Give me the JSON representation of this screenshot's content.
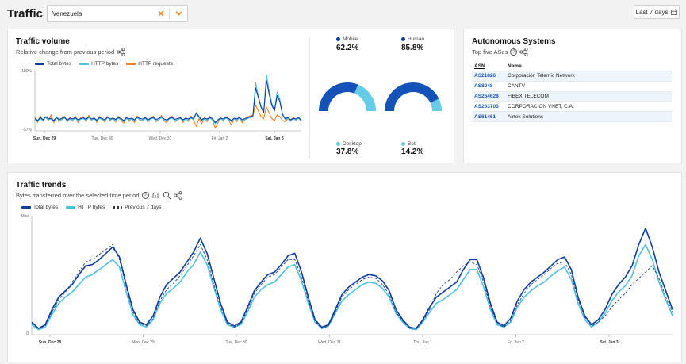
{
  "header": {
    "title": "Traffic in",
    "country": "Venezuela",
    "date_range": "Last 7 days"
  },
  "colors": {
    "total": "#0d3c9e",
    "http": "#4fc1e0",
    "requests": "#f48120",
    "accent": "#f48120"
  },
  "traffic_volume": {
    "title": "Traffic volume",
    "subtitle": "Relative change from previous period",
    "legend": [
      "Total bytes",
      "HTTP bytes",
      "HTTP requests"
    ],
    "y_top": "100%",
    "y_bottom": "-57%",
    "x_ticks": [
      "Sun, Dec 29",
      "Tue, Dec 30",
      "Wed, Dec 31",
      "Fri, Jan 2",
      "Sat, Jan 3"
    ]
  },
  "donuts": [
    {
      "label": "Mobile",
      "value": "62.2%",
      "frac": 0.622
    },
    {
      "label": "Human",
      "value": "85.8%",
      "frac": 0.858
    },
    {
      "label": "Desktop",
      "value": "37.8%"
    },
    {
      "label": "Bot",
      "value": "14.2%"
    }
  ],
  "asn": {
    "title": "Autonomous Systems",
    "subtitle": "Top five ASes",
    "headers": [
      "ASN",
      "Name"
    ],
    "rows": [
      {
        "asn": "AS21826",
        "name": "Corporación Telemic Network"
      },
      {
        "asn": "AS8048",
        "name": "CANTV"
      },
      {
        "asn": "AS264628",
        "name": "FIBEX TELECOM"
      },
      {
        "asn": "AS263703",
        "name": "CORPORACION VNET, C.A."
      },
      {
        "asn": "AS61461",
        "name": "Airtek Solutions"
      }
    ]
  },
  "traffic_trends": {
    "title": "Traffic trends",
    "subtitle": "Bytes transferred over the selected time period",
    "legend": [
      "Total bytes",
      "HTTP bytes",
      "Previous 7 days"
    ],
    "y_top": "Max",
    "y_bottom": "0",
    "x_ticks": [
      "Sun, Dec 28",
      "Mon, Dec 29",
      "Tue, Dec 30",
      "Wed, Dec 31",
      "Thu, Jan 1",
      "Fri, Jan 2",
      "Sat, Jan 3"
    ]
  },
  "chart_data": [
    {
      "type": "line",
      "title": "Traffic volume",
      "ylim": [
        -57,
        100
      ],
      "x_ticks": [
        "Sun, Dec 29",
        "Tue, Dec 30",
        "Wed, Dec 31",
        "Fri, Jan 2",
        "Sat, Jan 3"
      ],
      "series": [
        {
          "name": "Total bytes",
          "values": [
            -25,
            -30,
            -22,
            -28,
            -20,
            -26,
            -24,
            -30,
            -22,
            -27,
            -25,
            -21,
            -29,
            -24,
            -26,
            -22,
            -28,
            -25,
            -23,
            -27,
            -20,
            -26,
            -24,
            -29,
            -22,
            -25,
            -28,
            -21,
            -26,
            -24,
            -27,
            -22,
            -25,
            -30,
            -23,
            -26,
            -24,
            -28,
            -21,
            -25,
            -26,
            -23,
            -28,
            -24,
            -22,
            -27,
            -25,
            -20,
            -26,
            -29,
            -24,
            -22,
            -27,
            -25,
            -23,
            -28,
            -24,
            -26,
            -22,
            -25,
            -10,
            -20,
            -28,
            -24,
            -26,
            -22,
            -25,
            -35,
            -28,
            -24,
            -26,
            -22,
            -25,
            -30,
            -24,
            -26,
            -22,
            -28,
            -25,
            -23,
            -20,
            -18,
            55,
            30,
            5,
            -10,
            75,
            40,
            10,
            -5,
            35,
            20,
            -15,
            -25,
            -22,
            -28,
            -24,
            -26,
            -22,
            -30
          ]
        },
        {
          "name": "HTTP bytes",
          "values": [
            -28,
            -32,
            -25,
            -30,
            -22,
            -29,
            -26,
            -33,
            -24,
            -30,
            -28,
            -23,
            -31,
            -27,
            -29,
            -24,
            -31,
            -27,
            -25,
            -30,
            -22,
            -29,
            -26,
            -32,
            -24,
            -28,
            -30,
            -23,
            -29,
            -26,
            -30,
            -24,
            -28,
            -33,
            -25,
            -29,
            -26,
            -31,
            -23,
            -28,
            -29,
            -25,
            -31,
            -26,
            -24,
            -30,
            -28,
            -22,
            -29,
            -32,
            -26,
            -24,
            -30,
            -28,
            -25,
            -31,
            -26,
            -29,
            -24,
            -28,
            -12,
            -22,
            -31,
            -26,
            -29,
            -24,
            -28,
            -38,
            -31,
            -26,
            -29,
            -24,
            -28,
            -33,
            -26,
            -29,
            -24,
            -31,
            -28,
            -25,
            -22,
            -20,
            70,
            35,
            8,
            -8,
            90,
            50,
            15,
            -2,
            45,
            25,
            -12,
            -28,
            -24,
            -31,
            -26,
            -29,
            -24,
            -32
          ]
        },
        {
          "name": "HTTP requests",
          "values": [
            -22,
            -35,
            -18,
            -32,
            -20,
            -30,
            -15,
            -36,
            -21,
            -33,
            -24,
            -19,
            -34,
            -22,
            -31,
            -18,
            -35,
            -23,
            -20,
            -33,
            -17,
            -30,
            -22,
            -35,
            -19,
            -28,
            -34,
            -20,
            -31,
            -23,
            -34,
            -19,
            -29,
            -37,
            -21,
            -32,
            -24,
            -35,
            -18,
            -30,
            -31,
            -21,
            -34,
            -24,
            -19,
            -33,
            -29,
            -17,
            -31,
            -36,
            -22,
            -19,
            -33,
            -29,
            -21,
            -35,
            -22,
            -32,
            -19,
            -30,
            -45,
            -25,
            -38,
            -22,
            -33,
            -19,
            -29,
            -50,
            -36,
            -22,
            -32,
            -20,
            -30,
            -42,
            -24,
            -33,
            -20,
            -36,
            -28,
            -21,
            -18,
            -15,
            10,
            -5,
            -20,
            -25,
            5,
            -10,
            -25,
            -30,
            -15,
            -20,
            -30,
            -33,
            -25,
            -32,
            -22,
            -30,
            -24,
            -31
          ]
        }
      ]
    },
    {
      "type": "pie",
      "title": "Mobile vs Desktop",
      "categories": [
        "Mobile",
        "Desktop"
      ],
      "values": [
        62.2,
        37.8
      ]
    },
    {
      "type": "pie",
      "title": "Human vs Bot",
      "categories": [
        "Human",
        "Bot"
      ],
      "values": [
        85.8,
        14.2
      ]
    },
    {
      "type": "line",
      "title": "Traffic trends",
      "x_ticks": [
        "Sun, Dec 28",
        "Mon, Dec 29",
        "Tue, Dec 30",
        "Wed, Dec 31",
        "Thu, Jan 1",
        "Fri, Jan 2",
        "Sat, Jan 3"
      ],
      "series": [
        {
          "name": "Total bytes",
          "values": [
            0.1,
            0.05,
            0.08,
            0.2,
            0.3,
            0.35,
            0.4,
            0.48,
            0.55,
            0.56,
            0.6,
            0.65,
            0.7,
            0.62,
            0.4,
            0.2,
            0.1,
            0.08,
            0.15,
            0.3,
            0.4,
            0.45,
            0.5,
            0.58,
            0.66,
            0.77,
            0.65,
            0.45,
            0.25,
            0.1,
            0.07,
            0.1,
            0.22,
            0.35,
            0.42,
            0.48,
            0.5,
            0.56,
            0.63,
            0.65,
            0.5,
            0.3,
            0.12,
            0.06,
            0.08,
            0.2,
            0.32,
            0.38,
            0.42,
            0.46,
            0.48,
            0.47,
            0.43,
            0.35,
            0.2,
            0.12,
            0.06,
            0.05,
            0.12,
            0.22,
            0.3,
            0.34,
            0.38,
            0.42,
            0.52,
            0.6,
            0.6,
            0.45,
            0.25,
            0.1,
            0.07,
            0.13,
            0.27,
            0.36,
            0.42,
            0.46,
            0.5,
            0.55,
            0.6,
            0.62,
            0.52,
            0.3,
            0.15,
            0.08,
            0.12,
            0.2,
            0.32,
            0.4,
            0.46,
            0.55,
            0.72,
            0.85,
            0.7,
            0.5,
            0.35,
            0.2
          ]
        },
        {
          "name": "HTTP bytes",
          "values": [
            0.08,
            0.04,
            0.06,
            0.16,
            0.25,
            0.3,
            0.34,
            0.4,
            0.46,
            0.48,
            0.52,
            0.56,
            0.6,
            0.54,
            0.34,
            0.16,
            0.08,
            0.06,
            0.12,
            0.25,
            0.33,
            0.37,
            0.42,
            0.5,
            0.56,
            0.66,
            0.56,
            0.38,
            0.2,
            0.08,
            0.06,
            0.08,
            0.18,
            0.3,
            0.36,
            0.4,
            0.42,
            0.48,
            0.54,
            0.56,
            0.43,
            0.25,
            0.1,
            0.05,
            0.07,
            0.17,
            0.27,
            0.32,
            0.36,
            0.4,
            0.42,
            0.41,
            0.37,
            0.3,
            0.17,
            0.1,
            0.05,
            0.04,
            0.1,
            0.18,
            0.25,
            0.28,
            0.32,
            0.36,
            0.44,
            0.52,
            0.52,
            0.38,
            0.2,
            0.08,
            0.06,
            0.1,
            0.22,
            0.3,
            0.35,
            0.39,
            0.42,
            0.47,
            0.51,
            0.54,
            0.44,
            0.25,
            0.12,
            0.06,
            0.1,
            0.17,
            0.27,
            0.34,
            0.39,
            0.47,
            0.63,
            0.72,
            0.6,
            0.42,
            0.28,
            0.15
          ]
        },
        {
          "name": "Previous 7 days",
          "values": [
            0.09,
            0.05,
            0.07,
            0.18,
            0.28,
            0.34,
            0.42,
            0.5,
            0.58,
            0.6,
            0.64,
            0.68,
            0.72,
            0.6,
            0.38,
            0.18,
            0.09,
            0.07,
            0.13,
            0.27,
            0.36,
            0.41,
            0.47,
            0.55,
            0.63,
            0.72,
            0.6,
            0.4,
            0.22,
            0.09,
            0.06,
            0.09,
            0.2,
            0.33,
            0.4,
            0.46,
            0.48,
            0.54,
            0.6,
            0.6,
            0.46,
            0.27,
            0.11,
            0.05,
            0.07,
            0.18,
            0.3,
            0.36,
            0.4,
            0.44,
            0.46,
            0.45,
            0.4,
            0.32,
            0.18,
            0.11,
            0.05,
            0.05,
            0.11,
            0.2,
            0.33,
            0.4,
            0.44,
            0.5,
            0.55,
            0.58,
            0.56,
            0.42,
            0.22,
            0.09,
            0.06,
            0.11,
            0.24,
            0.33,
            0.4,
            0.44,
            0.48,
            0.53,
            0.57,
            0.58,
            0.48,
            0.28,
            0.14,
            0.07,
            0.1,
            0.15,
            0.22,
            0.28,
            0.33,
            0.4,
            0.45,
            0.5,
            0.55,
            0.45,
            0.3,
            0.18
          ]
        }
      ]
    }
  ]
}
